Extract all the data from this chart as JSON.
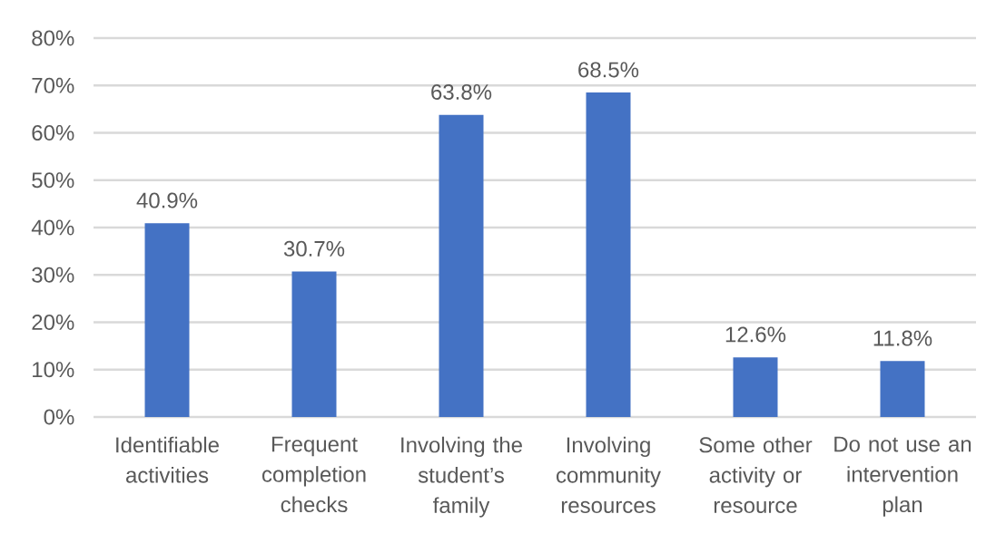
{
  "chart_data": {
    "type": "bar",
    "categories": [
      "Identifiable activities",
      "Frequent completion checks",
      "Involving the student’s family",
      "Involving community resources",
      "Some other activity or resource",
      "Do not use an intervention plan"
    ],
    "values": [
      40.9,
      30.7,
      63.8,
      68.5,
      12.6,
      11.8
    ],
    "value_labels": [
      "40.9%",
      "30.7%",
      "63.8%",
      "68.5%",
      "12.6%",
      "11.8%"
    ],
    "color": "#4472c4",
    "ylim": [
      0,
      80
    ],
    "yticks": [
      {
        "value": 0,
        "label": "0%"
      },
      {
        "value": 10,
        "label": "10%"
      },
      {
        "value": 20,
        "label": "20%"
      },
      {
        "value": 30,
        "label": "30%"
      },
      {
        "value": 40,
        "label": "40%"
      },
      {
        "value": 50,
        "label": "50%"
      },
      {
        "value": 60,
        "label": "60%"
      },
      {
        "value": 70,
        "label": "70%"
      },
      {
        "value": 80,
        "label": "80%"
      }
    ],
    "grid": "y"
  }
}
